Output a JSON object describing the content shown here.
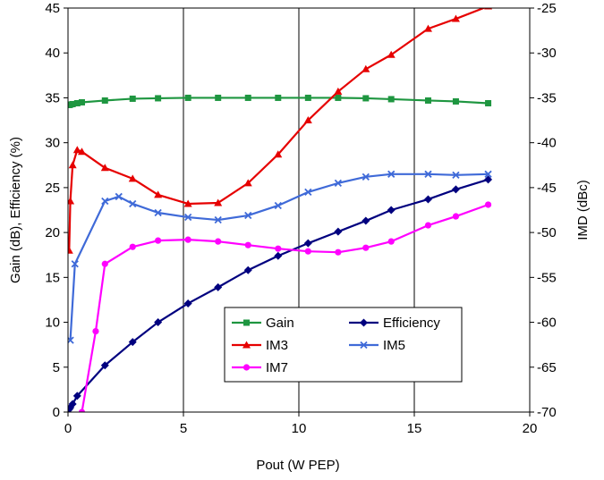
{
  "chart_data": {
    "type": "line",
    "title": "",
    "xlabel": "Pout (W PEP)",
    "ylabel_left": "Gain (dB), Efficiency (%)",
    "ylabel_right": "IMD (dBc)",
    "xlim": [
      0,
      20
    ],
    "ylim_left": [
      0,
      45
    ],
    "ylim_right": [
      -70,
      -25
    ],
    "x_ticks": [
      0,
      5,
      10,
      15,
      20
    ],
    "y_left_ticks": [
      0,
      5,
      10,
      15,
      20,
      25,
      30,
      35,
      40,
      45
    ],
    "y_right_ticks": [
      -70,
      -65,
      -60,
      -55,
      -50,
      -45,
      -40,
      -35,
      -30,
      -25
    ],
    "grid": "vertical",
    "legend": "center",
    "series": [
      {
        "name": "Gain",
        "axis": "left",
        "color": "#1e9640",
        "marker": "square",
        "x": [
          0.05,
          0.1,
          0.2,
          0.4,
          0.6,
          1.6,
          2.8,
          3.9,
          5.2,
          6.5,
          7.8,
          9.1,
          10.4,
          11.7,
          12.9,
          14.0,
          15.6,
          16.8,
          18.2
        ],
        "y": [
          34.2,
          34.25,
          34.3,
          34.4,
          34.5,
          34.7,
          34.9,
          34.95,
          35.0,
          35.0,
          35.0,
          35.0,
          35.0,
          35.0,
          34.95,
          34.85,
          34.7,
          34.6,
          34.4
        ]
      },
      {
        "name": "Efficiency",
        "axis": "left",
        "color": "#00007f",
        "marker": "diamond",
        "x": [
          0.05,
          0.1,
          0.2,
          0.4,
          1.6,
          2.8,
          3.9,
          5.2,
          6.5,
          7.8,
          9.1,
          10.4,
          11.7,
          12.9,
          14.0,
          15.6,
          16.8,
          18.2
        ],
        "y": [
          0.3,
          0.5,
          0.9,
          1.8,
          5.2,
          7.8,
          10.0,
          12.1,
          13.9,
          15.8,
          17.4,
          18.8,
          20.1,
          21.3,
          22.5,
          23.7,
          24.8,
          25.9
        ]
      },
      {
        "name": "IM3",
        "axis": "right",
        "color": "#e60000",
        "marker": "triangle",
        "x": [
          0.05,
          0.1,
          0.2,
          0.4,
          0.6,
          1.6,
          2.8,
          3.9,
          5.2,
          6.5,
          7.8,
          9.1,
          10.4,
          11.7,
          12.9,
          14.0,
          15.6,
          16.8,
          18.2
        ],
        "y": [
          -52,
          -46.5,
          -42.5,
          -40.8,
          -41.0,
          -42.8,
          -44.0,
          -45.8,
          -46.8,
          -46.7,
          -44.5,
          -41.3,
          -37.5,
          -34.3,
          -31.8,
          -30.2,
          -27.3,
          -26.2,
          -24.8
        ]
      },
      {
        "name": "IM5",
        "axis": "right",
        "color": "#3f6ad8",
        "marker": "x",
        "x": [
          0.1,
          0.3,
          1.6,
          2.2,
          2.8,
          3.9,
          5.2,
          6.5,
          7.8,
          9.1,
          10.4,
          11.7,
          12.9,
          14.0,
          15.6,
          16.8,
          18.2
        ],
        "y": [
          -62,
          -53.5,
          -46.5,
          -46.0,
          -46.8,
          -47.8,
          -48.3,
          -48.6,
          -48.1,
          -47.0,
          -45.5,
          -44.5,
          -43.8,
          -43.5,
          -43.5,
          -43.6,
          -43.5
        ]
      },
      {
        "name": "IM7",
        "axis": "right",
        "color": "#ff00ff",
        "marker": "circle",
        "x": [
          0.6,
          1.2,
          1.6,
          2.8,
          3.9,
          5.2,
          6.5,
          7.8,
          9.1,
          10.4,
          11.7,
          12.9,
          14.0,
          15.6,
          16.8,
          18.2
        ],
        "y": [
          -70,
          -61,
          -53.5,
          -51.6,
          -50.9,
          -50.8,
          -51.0,
          -51.4,
          -51.8,
          -52.1,
          -52.2,
          -51.7,
          -51.0,
          -49.2,
          -48.2,
          -46.9
        ]
      }
    ]
  }
}
